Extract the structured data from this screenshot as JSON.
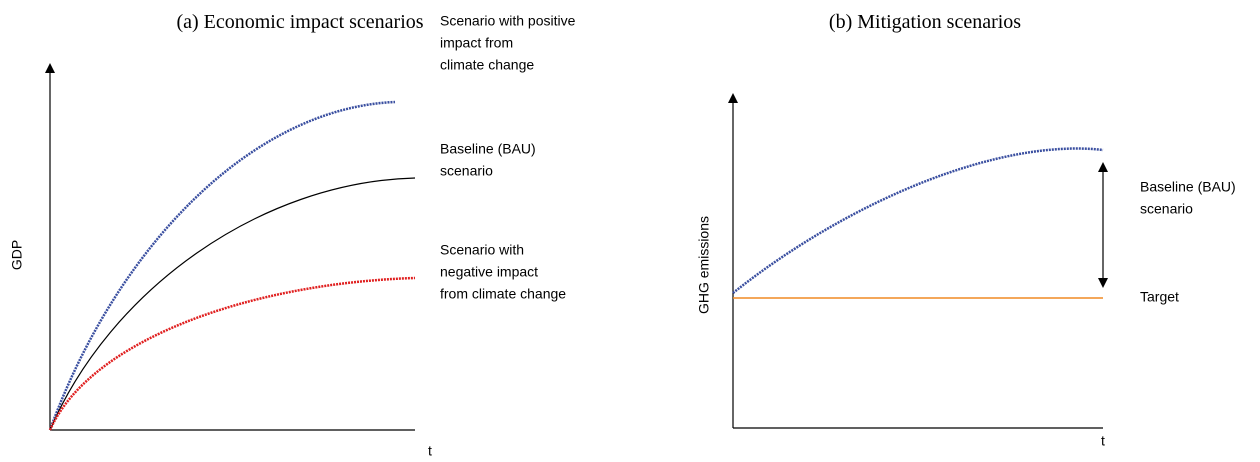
{
  "panels": [
    {
      "title": "(a) Economic impact scenarios",
      "y_label": "GDP",
      "x_label": "t",
      "labels": [
        {
          "lines": [
            "Scenario with positive",
            "impact from",
            "climate change"
          ]
        },
        {
          "lines": [
            "Baseline (BAU)",
            "scenario"
          ]
        },
        {
          "lines": [
            "Scenario with",
            "negative impact",
            "from climate change"
          ]
        }
      ]
    },
    {
      "title": "(b) Mitigation scenarios",
      "y_label": "GHG emissions",
      "x_label": "t",
      "labels": [
        {
          "lines": [
            "Baseline (BAU)",
            "scenario"
          ]
        },
        {
          "lines": [
            "Target"
          ]
        }
      ]
    }
  ]
}
